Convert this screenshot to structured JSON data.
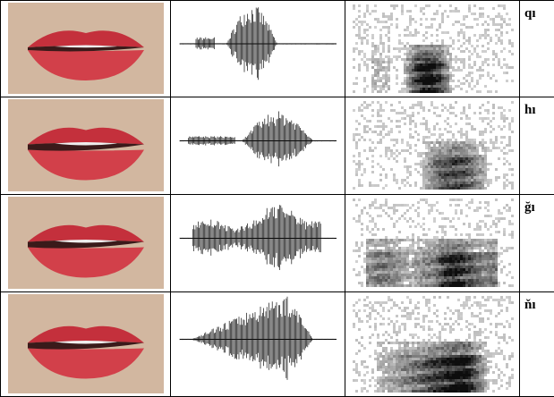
{
  "table": {
    "rows": [
      {
        "label": "qı"
      },
      {
        "label": "hı"
      },
      {
        "label": "ğı"
      },
      {
        "label": "ňı"
      }
    ]
  }
}
